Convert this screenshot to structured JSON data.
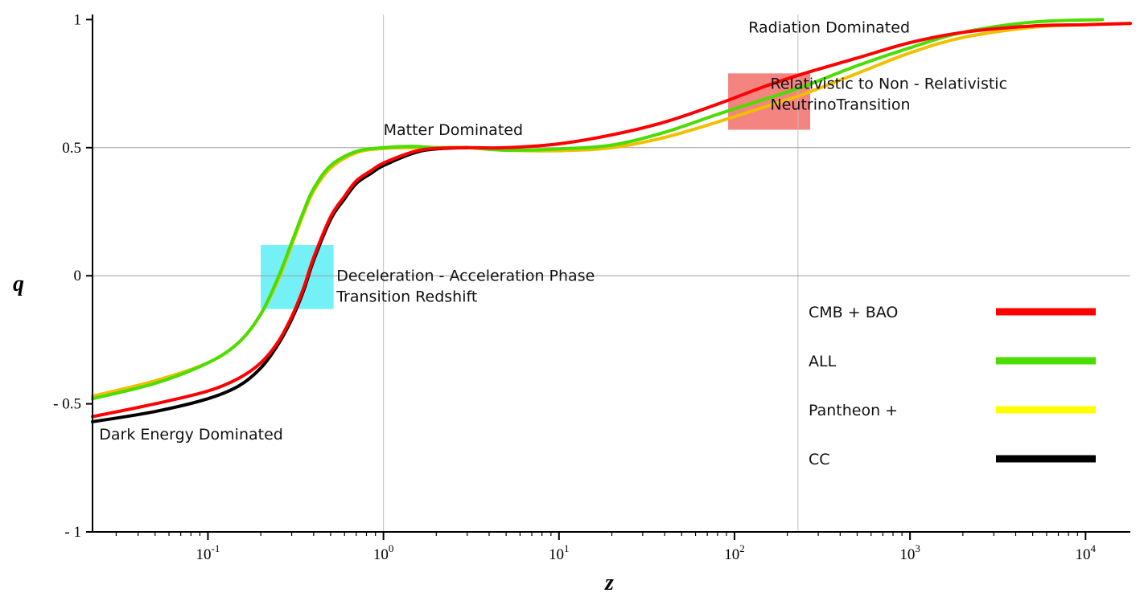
{
  "chart_data": {
    "type": "line",
    "title": "",
    "xlabel": "z",
    "ylabel": "q",
    "xscale": "log",
    "xlim": [
      0.022,
      18000
    ],
    "ylim": [
      -1,
      1.02
    ],
    "grid": "reference lines at x=1, x=230 and y=0, y=0.5",
    "x_ticks": [
      {
        "base": "10",
        "exp": "-1",
        "value": 0.1
      },
      {
        "base": "10",
        "exp": "0",
        "value": 1
      },
      {
        "base": "10",
        "exp": "1",
        "value": 10
      },
      {
        "base": "10",
        "exp": "2",
        "value": 100
      },
      {
        "base": "10",
        "exp": "3",
        "value": 1000
      },
      {
        "base": "10",
        "exp": "4",
        "value": 10000
      }
    ],
    "y_ticks": [
      {
        "label": "1",
        "value": 1
      },
      {
        "label": "0.5",
        "value": 0.5
      },
      {
        "label": "0",
        "value": 0
      },
      {
        "label": "- 0.5",
        "value": -0.5
      },
      {
        "label": "- 1",
        "value": -1
      }
    ],
    "vlines": [
      1,
      230
    ],
    "hlines": [
      0,
      0.5
    ],
    "series": [
      {
        "name": "Pantheon +",
        "color": "#f0c000",
        "points": [
          [
            0.022,
            -0.47
          ],
          [
            0.05,
            -0.41
          ],
          [
            0.1,
            -0.34
          ],
          [
            0.15,
            -0.26
          ],
          [
            0.2,
            -0.15
          ],
          [
            0.25,
            -0.02
          ],
          [
            0.3,
            0.12
          ],
          [
            0.35,
            0.24
          ],
          [
            0.4,
            0.33
          ],
          [
            0.5,
            0.42
          ],
          [
            0.7,
            0.48
          ],
          [
            1,
            0.497
          ],
          [
            1.5,
            0.5
          ],
          [
            2,
            0.5
          ],
          [
            3,
            0.5
          ],
          [
            5,
            0.49
          ],
          [
            10,
            0.488
          ],
          [
            20,
            0.5
          ],
          [
            40,
            0.54
          ],
          [
            80,
            0.6
          ],
          [
            150,
            0.66
          ],
          [
            250,
            0.71
          ],
          [
            500,
            0.79
          ],
          [
            1000,
            0.87
          ],
          [
            2000,
            0.93
          ],
          [
            5000,
            0.97
          ],
          [
            10000,
            0.98
          ],
          [
            18000,
            0.985
          ]
        ]
      },
      {
        "name": "ALL",
        "color": "#4cdd00",
        "points": [
          [
            0.022,
            -0.48
          ],
          [
            0.05,
            -0.42
          ],
          [
            0.1,
            -0.34
          ],
          [
            0.15,
            -0.26
          ],
          [
            0.2,
            -0.15
          ],
          [
            0.25,
            -0.01
          ],
          [
            0.3,
            0.13
          ],
          [
            0.35,
            0.25
          ],
          [
            0.4,
            0.34
          ],
          [
            0.5,
            0.43
          ],
          [
            0.7,
            0.485
          ],
          [
            1,
            0.5
          ],
          [
            1.5,
            0.505
          ],
          [
            2,
            0.5
          ],
          [
            3,
            0.5
          ],
          [
            5,
            0.49
          ],
          [
            10,
            0.495
          ],
          [
            20,
            0.51
          ],
          [
            40,
            0.56
          ],
          [
            80,
            0.63
          ],
          [
            150,
            0.69
          ],
          [
            250,
            0.74
          ],
          [
            500,
            0.82
          ],
          [
            1000,
            0.89
          ],
          [
            2000,
            0.95
          ],
          [
            5000,
            0.99
          ],
          [
            12500,
            1.0
          ]
        ]
      },
      {
        "name": "CC",
        "color": "#000000",
        "points": [
          [
            0.022,
            -0.57
          ],
          [
            0.05,
            -0.53
          ],
          [
            0.1,
            -0.48
          ],
          [
            0.15,
            -0.43
          ],
          [
            0.2,
            -0.36
          ],
          [
            0.25,
            -0.27
          ],
          [
            0.3,
            -0.17
          ],
          [
            0.35,
            -0.06
          ],
          [
            0.4,
            0.06
          ],
          [
            0.5,
            0.22
          ],
          [
            0.6,
            0.3
          ],
          [
            0.7,
            0.36
          ],
          [
            0.85,
            0.4
          ],
          [
            1,
            0.43
          ],
          [
            1.5,
            0.48
          ],
          [
            2,
            0.495
          ],
          [
            3,
            0.5
          ]
        ]
      },
      {
        "name": "CMB + BAO",
        "color": "#ff0000",
        "points": [
          [
            0.022,
            -0.55
          ],
          [
            0.05,
            -0.5
          ],
          [
            0.1,
            -0.45
          ],
          [
            0.15,
            -0.4
          ],
          [
            0.2,
            -0.34
          ],
          [
            0.25,
            -0.26
          ],
          [
            0.3,
            -0.16
          ],
          [
            0.35,
            -0.05
          ],
          [
            0.4,
            0.07
          ],
          [
            0.5,
            0.23
          ],
          [
            0.6,
            0.31
          ],
          [
            0.7,
            0.37
          ],
          [
            0.85,
            0.41
          ],
          [
            1,
            0.44
          ],
          [
            1.5,
            0.485
          ],
          [
            2,
            0.497
          ],
          [
            3,
            0.5
          ],
          [
            5,
            0.5
          ],
          [
            10,
            0.515
          ],
          [
            20,
            0.55
          ],
          [
            40,
            0.6
          ],
          [
            80,
            0.67
          ],
          [
            150,
            0.74
          ],
          [
            250,
            0.79
          ],
          [
            500,
            0.85
          ],
          [
            1000,
            0.91
          ],
          [
            2000,
            0.95
          ],
          [
            5000,
            0.975
          ],
          [
            10000,
            0.98
          ],
          [
            18000,
            0.985
          ]
        ]
      }
    ],
    "legend": {
      "position": "bottom-right",
      "entries": [
        {
          "label": "CMB + BAO",
          "color": "#ff0000"
        },
        {
          "label": "ALL",
          "color": "#4cdd00"
        },
        {
          "label": "Pantheon +",
          "color": "#ffff00"
        },
        {
          "label": "CC",
          "color": "#000000"
        }
      ]
    },
    "shaded_regions": [
      {
        "name": "transition-redshift",
        "x": [
          0.2,
          0.52
        ],
        "y": [
          -0.13,
          0.12
        ],
        "color": "#00e5ee",
        "opacity": 0.55
      },
      {
        "name": "neutrino-transition",
        "x": [
          92,
          270
        ],
        "y": [
          0.57,
          0.79
        ],
        "color": "#f0504a",
        "opacity": 0.7
      }
    ],
    "annotations": [
      {
        "name": "radiation-dominated",
        "lines": [
          "Radiation  Dominated"
        ],
        "x": 120,
        "y": 0.95
      },
      {
        "name": "neutrino-transition",
        "lines": [
          "Relativistic  to Non - Relativistic",
          "NeutrinoTransition"
        ],
        "x": 160,
        "y": 0.73
      },
      {
        "name": "matter-dominated",
        "lines": [
          "Matter Dominated"
        ],
        "x": 1.0,
        "y": 0.55
      },
      {
        "name": "transition-redshift",
        "lines": [
          "Deceleration - Acceleration Phase",
          "Transition Redshift"
        ],
        "x": 0.54,
        "y": -0.02
      },
      {
        "name": "dark-energy-dominated",
        "lines": [
          "Dark Energy Dominated"
        ],
        "x": 0.024,
        "y": -0.64
      }
    ]
  }
}
